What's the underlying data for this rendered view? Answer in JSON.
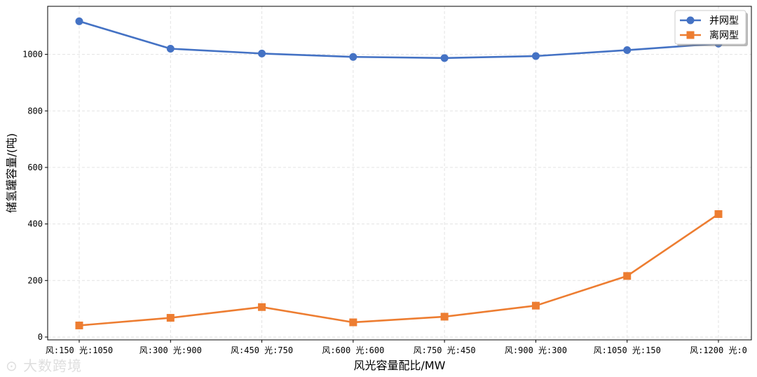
{
  "chart_data": {
    "type": "line",
    "title": "",
    "xlabel": "风光容量配比/MW",
    "ylabel": "储氢罐容量/(吨)",
    "categories": [
      "风:150 光:1050",
      "风:300 光:900",
      "风:450 光:750",
      "风:600 光:600",
      "风:750 光:450",
      "风:900 光:300",
      "风:1050 光:150",
      "风:1200 光:0"
    ],
    "ylim": [
      -10,
      1170
    ],
    "yticks": [
      0,
      200,
      400,
      600,
      800,
      1000
    ],
    "grid": true,
    "legend_position": "top-right",
    "series": [
      {
        "name": "并网型",
        "color": "#4472c4",
        "marker": "circle",
        "values": [
          1117,
          1020,
          1003,
          991,
          987,
          994,
          1015,
          1038
        ]
      },
      {
        "name": "离网型",
        "color": "#ed7d31",
        "marker": "square",
        "values": [
          41,
          68,
          106,
          52,
          72,
          111,
          216,
          435
        ]
      }
    ]
  },
  "watermark": "大数跨境"
}
